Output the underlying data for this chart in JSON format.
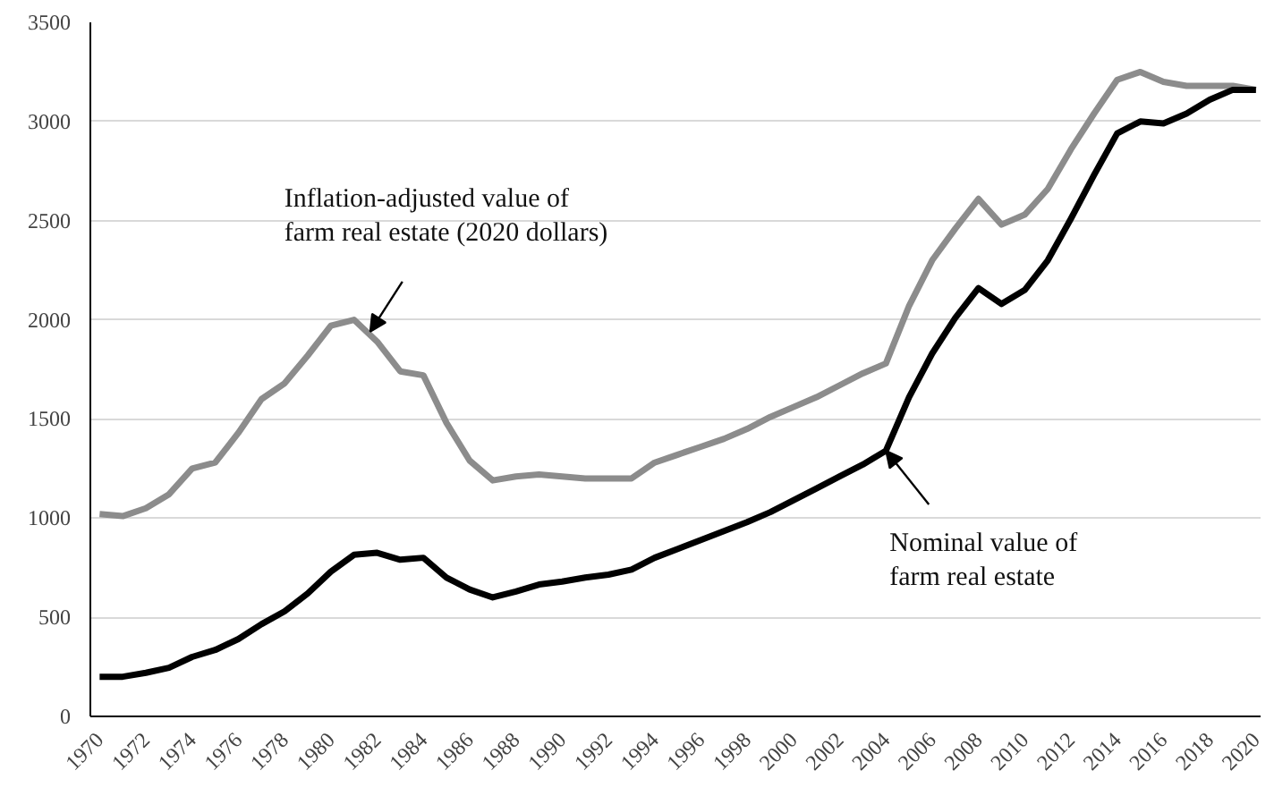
{
  "chart_data": {
    "type": "line",
    "x": [
      1970,
      1971,
      1972,
      1973,
      1974,
      1975,
      1976,
      1977,
      1978,
      1979,
      1980,
      1981,
      1982,
      1983,
      1984,
      1985,
      1986,
      1987,
      1988,
      1989,
      1990,
      1991,
      1992,
      1993,
      1994,
      1995,
      1996,
      1997,
      1998,
      1999,
      2000,
      2001,
      2002,
      2003,
      2004,
      2005,
      2006,
      2007,
      2008,
      2009,
      2010,
      2011,
      2012,
      2013,
      2014,
      2015,
      2016,
      2017,
      2018,
      2019,
      2020
    ],
    "series": [
      {
        "color": "#8c8c8c",
        "values": [
          1020,
          1010,
          1050,
          1120,
          1250,
          1280,
          1430,
          1600,
          1680,
          1820,
          1970,
          2000,
          1890,
          1740,
          1720,
          1480,
          1290,
          1190,
          1210,
          1220,
          1210,
          1200,
          1200,
          1200,
          1280,
          1320,
          1360,
          1400,
          1450,
          1510,
          1560,
          1610,
          1670,
          1730,
          1780,
          2070,
          2300,
          2460,
          2610,
          2480,
          2530,
          2660,
          2860,
          3040,
          3210,
          3250,
          3200,
          3180,
          3180,
          3180,
          3160
        ]
      },
      {
        "color": "#000000",
        "values": [
          200,
          200,
          220,
          245,
          300,
          335,
          390,
          465,
          530,
          620,
          730,
          815,
          825,
          790,
          800,
          700,
          640,
          600,
          630,
          665,
          680,
          700,
          715,
          740,
          800,
          845,
          890,
          935,
          980,
          1030,
          1090,
          1150,
          1210,
          1270,
          1340,
          1610,
          1830,
          2010,
          2160,
          2080,
          2150,
          2300,
          2510,
          2730,
          2940,
          3000,
          2990,
          3040,
          3110,
          3160,
          3160
        ]
      }
    ],
    "xlim": [
      1969.6,
      2020.2
    ],
    "xticks": [
      1970,
      1972,
      1974,
      1976,
      1978,
      1980,
      1982,
      1984,
      1986,
      1988,
      1990,
      1992,
      1994,
      1996,
      1998,
      2000,
      2002,
      2004,
      2006,
      2008,
      2010,
      2012,
      2014,
      2016,
      2018,
      2020
    ],
    "ylim": [
      0,
      3500
    ],
    "yticks": [
      0,
      500,
      1000,
      1500,
      2000,
      2500,
      3000,
      3500
    ],
    "grid": "y",
    "marker": "none",
    "line_style": "solid",
    "annotations": [
      {
        "text": "Inflation-adjusted value of\nfarm real estate (2020 dollars)",
        "x": 1981.7,
        "y": 1940
      },
      {
        "text": "Nominal value of\nfarm real estate",
        "x": 2004,
        "y": 1340
      }
    ]
  }
}
